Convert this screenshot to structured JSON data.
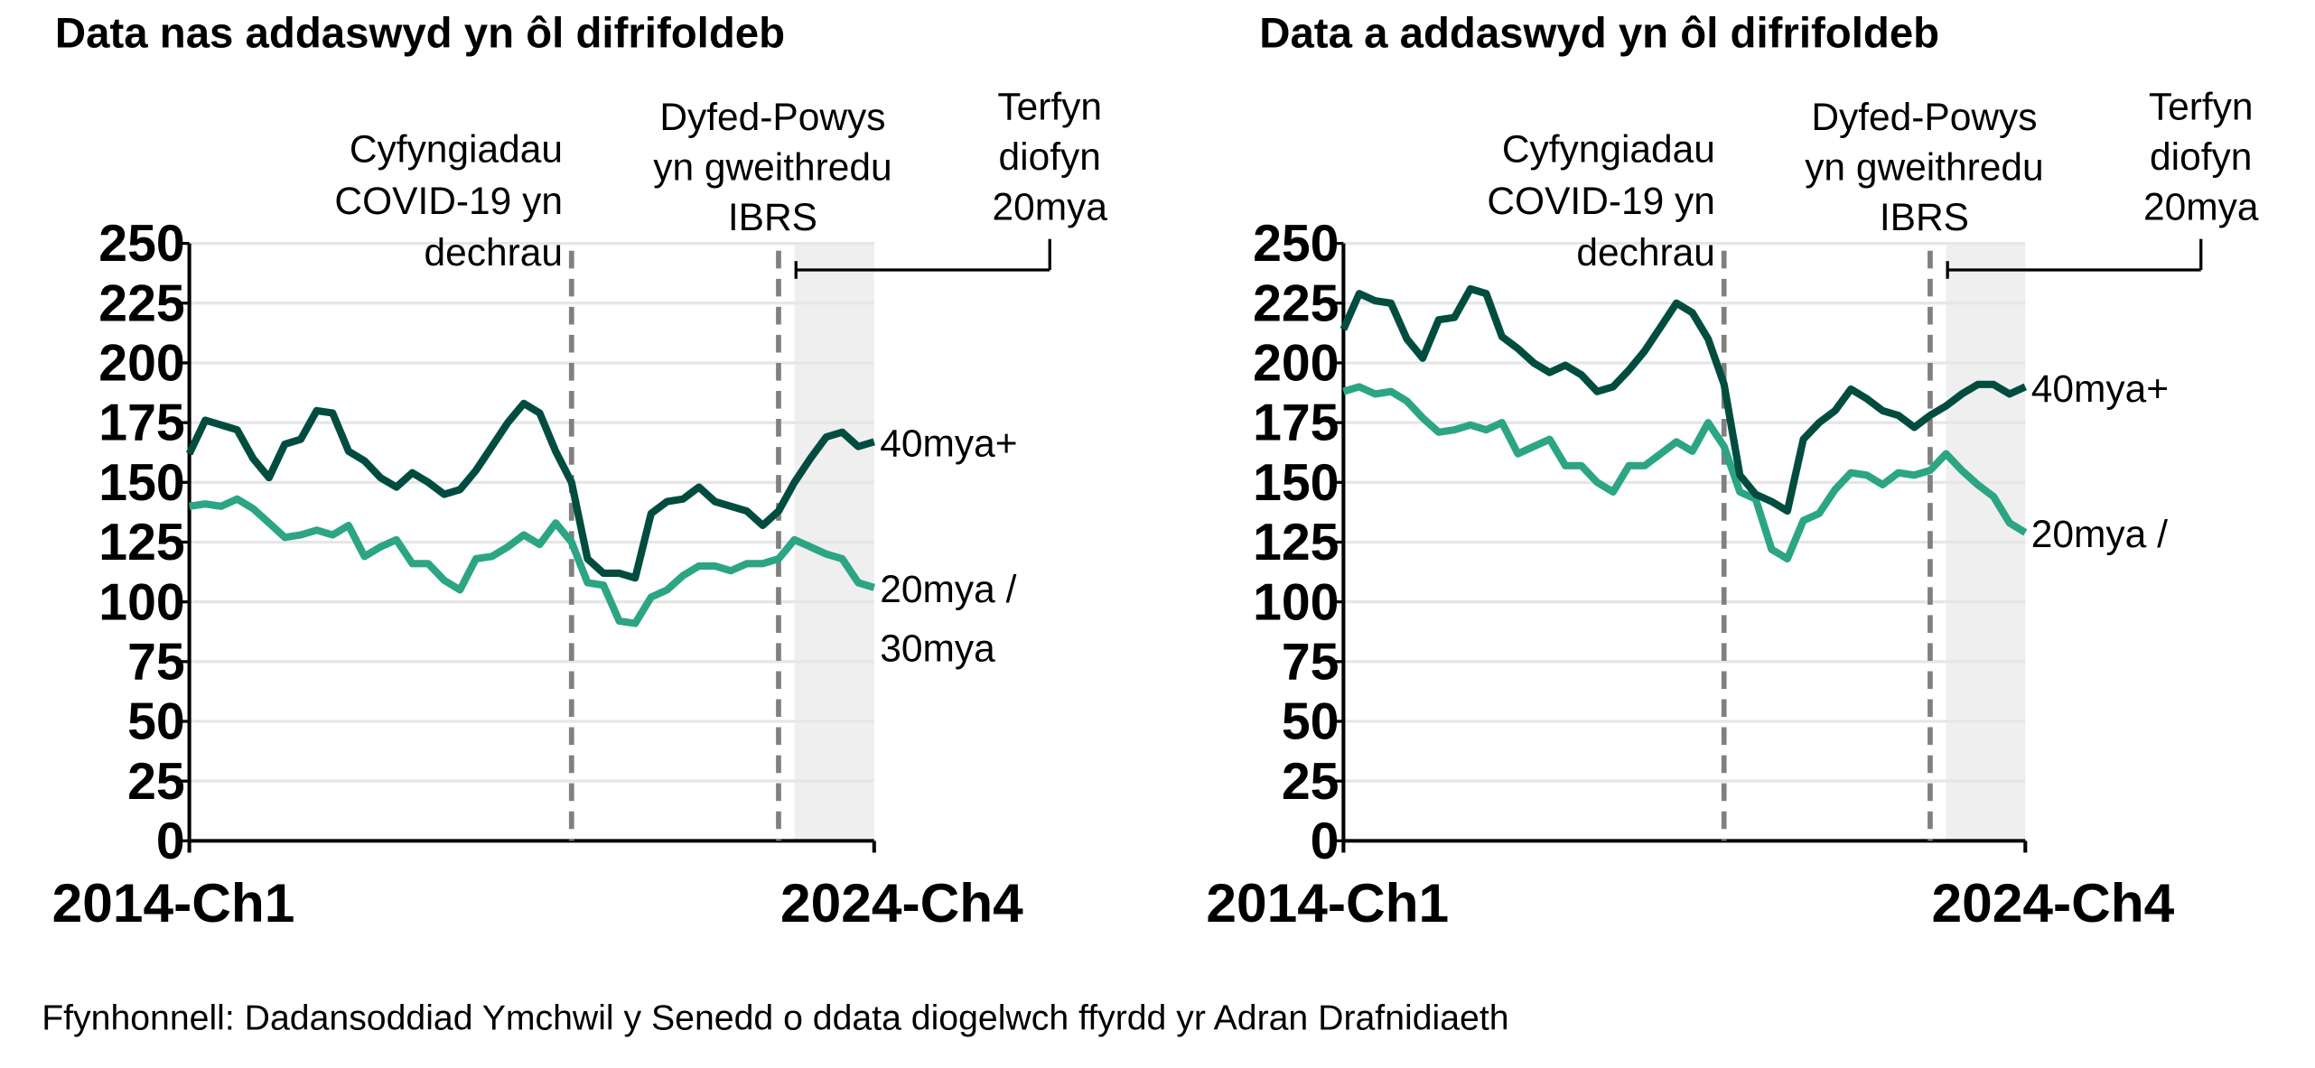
{
  "source": "Ffynhonnell: Dadansoddiad Ymchwil y Senedd o ddata diogelwch ffyrdd yr Adran Drafnidiaeth",
  "colors": {
    "series_40": "#004d40",
    "series_20_30": "#2ca584",
    "shade": "#efefef",
    "event_line": "#808080",
    "grid": "#e6e6e6"
  },
  "chart_data": [
    {
      "type": "line",
      "title": "Data nas addaswyd yn ôl difrifoldeb",
      "x_start_label": "2014-Ch1",
      "x_end_label": "2024-Ch4",
      "ylim": [
        0,
        250
      ],
      "yticks": [
        "0",
        "25",
        "50",
        "75",
        "100",
        "125",
        "150",
        "175",
        "200",
        "225",
        "250"
      ],
      "grid": true,
      "annotations": [
        {
          "lines": [
            "Cyfyngiadau",
            "COVID-19 yn",
            "dechrau"
          ],
          "at_index": 24
        },
        {
          "lines": [
            "Dyfed-Powys",
            "yn gweithredu",
            "IBRS"
          ],
          "at_index": 37
        },
        {
          "lines": [
            "Terfyn",
            "diofyn",
            "20mya"
          ],
          "shade_from_index": 38
        }
      ],
      "series": [
        {
          "name": "40mya+",
          "label_lines": [
            "40mya+"
          ],
          "color": "#004d40",
          "values": [
            162,
            176,
            174,
            172,
            160,
            152,
            166,
            168,
            180,
            179,
            163,
            159,
            152,
            148,
            154,
            150,
            145,
            147,
            155,
            165,
            175,
            183,
            179,
            163,
            150,
            118,
            112,
            112,
            110,
            137,
            142,
            143,
            148,
            142,
            140,
            138,
            132,
            138,
            150,
            160,
            169,
            171,
            165,
            167
          ]
        },
        {
          "name": "20mya / 30mya",
          "label_lines": [
            "20mya /",
            "30mya"
          ],
          "color": "#2ca584",
          "values": [
            140,
            141,
            140,
            143,
            139,
            133,
            127,
            128,
            130,
            128,
            132,
            119,
            123,
            126,
            116,
            116,
            109,
            105,
            118,
            119,
            123,
            128,
            124,
            133,
            125,
            108,
            107,
            92,
            91,
            102,
            105,
            111,
            115,
            115,
            113,
            116,
            116,
            118,
            126,
            123,
            120,
            118,
            108,
            106
          ]
        }
      ]
    },
    {
      "type": "line",
      "title": "Data a addaswyd yn ôl difrifoldeb",
      "x_start_label": "2014-Ch1",
      "x_end_label": "2024-Ch4",
      "ylim": [
        0,
        250
      ],
      "yticks": [
        "0",
        "25",
        "50",
        "75",
        "100",
        "125",
        "150",
        "175",
        "200",
        "225",
        "250"
      ],
      "grid": true,
      "annotations": [
        {
          "lines": [
            "Cyfyngiadau",
            "COVID-19 yn",
            "dechrau"
          ],
          "at_index": 24
        },
        {
          "lines": [
            "Dyfed-Powys",
            "yn gweithredu",
            "IBRS"
          ],
          "at_index": 37
        },
        {
          "lines": [
            "Terfyn",
            "diofyn",
            "20mya"
          ],
          "shade_from_index": 38
        }
      ],
      "series": [
        {
          "name": "40mya+",
          "label_lines": [
            "40mya+"
          ],
          "color": "#004d40",
          "values": [
            214,
            229,
            226,
            225,
            210,
            202,
            218,
            219,
            231,
            229,
            211,
            206,
            200,
            196,
            199,
            195,
            188,
            190,
            197,
            205,
            215,
            225,
            221,
            210,
            191,
            153,
            145,
            142,
            138,
            168,
            175,
            180,
            189,
            185,
            180,
            178,
            173,
            178,
            182,
            187,
            191,
            191,
            187,
            190
          ]
        },
        {
          "name": "20mya /",
          "label_lines": [
            "20mya /"
          ],
          "color": "#2ca584",
          "values": [
            188,
            190,
            187,
            188,
            184,
            177,
            171,
            172,
            174,
            172,
            175,
            162,
            165,
            168,
            157,
            157,
            150,
            146,
            157,
            157,
            162,
            167,
            163,
            175,
            165,
            146,
            143,
            122,
            118,
            134,
            137,
            147,
            154,
            153,
            149,
            154,
            153,
            155,
            162,
            155,
            149,
            144,
            133,
            129
          ]
        }
      ]
    }
  ]
}
